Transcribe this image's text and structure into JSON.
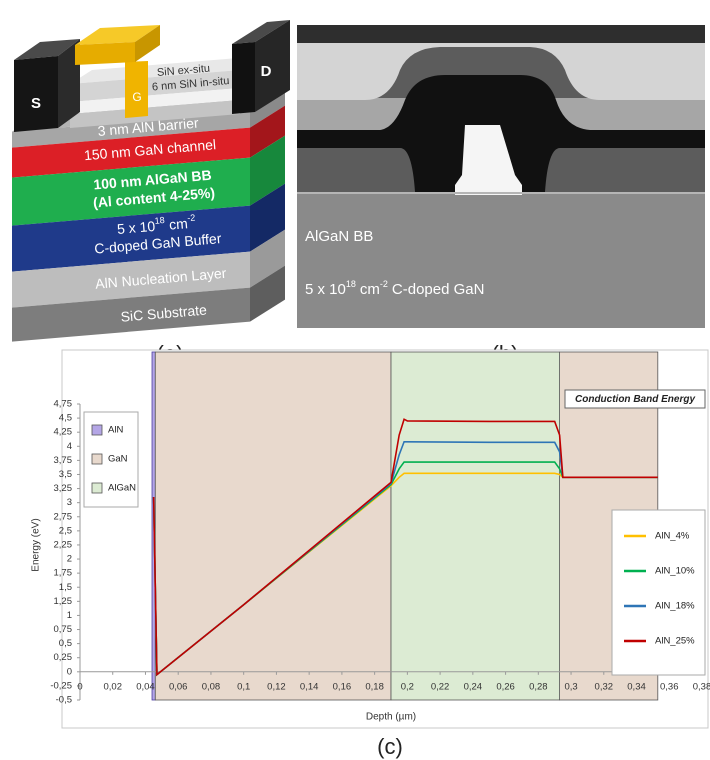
{
  "panel_a": {
    "label": "(a)",
    "source": "S",
    "drain": "D",
    "gate": "G",
    "sin_ex_situ": "SiN ex-situ",
    "sin_in_situ": "6 nm SiN in-situ",
    "barrier": "3 nm AlN barrier",
    "channel": "150 nm GaN channel",
    "back_barrier": [
      "100 nm AlGaN BB",
      "(Al content 4-25%)"
    ],
    "buffer": {
      "base": "5 x 10",
      "exp": "18",
      "unit": "cm",
      "unit_exp": "-2",
      "line2": "C-doped GaN Buffer"
    },
    "nucleation": "AlN Nucleation Layer",
    "substrate": "SiC Substrate"
  },
  "panel_b": {
    "label": "(b)",
    "layer1": "AlGaN BB",
    "layer2": {
      "base": "5 x 10",
      "exp": "18",
      "unit": "cm",
      "unit_exp": "-2",
      "rest": "C-doped GaN"
    }
  },
  "panel_c_label": "(c)",
  "chart_data": {
    "type": "line",
    "annotation": "Conduction Band Energy",
    "x_label": "Depth (µm)",
    "y_label": "Energy (eV)",
    "x": [
      0.045,
      0.046,
      0.047,
      0.1,
      0.19,
      0.195,
      0.198,
      0.2,
      0.25,
      0.29,
      0.293,
      0.295,
      0.353
    ],
    "series": [
      {
        "name": "AlN_4%",
        "color": "#ffc000",
        "values": [
          3.1,
          1.5,
          -0.05,
          1.19,
          3.3,
          3.45,
          3.52,
          3.52,
          3.52,
          3.52,
          3.5,
          3.45,
          3.45
        ]
      },
      {
        "name": "AlN_10%",
        "color": "#00b050",
        "values": [
          3.1,
          1.5,
          -0.05,
          1.19,
          3.32,
          3.6,
          3.72,
          3.72,
          3.72,
          3.72,
          3.6,
          3.45,
          3.45
        ]
      },
      {
        "name": "AlN_18%",
        "color": "#2e75b6",
        "values": [
          3.1,
          1.5,
          -0.05,
          1.19,
          3.34,
          3.85,
          4.08,
          4.08,
          4.07,
          4.07,
          3.9,
          3.45,
          3.45
        ]
      },
      {
        "name": "AlN_25%",
        "color": "#c00000",
        "values": [
          3.1,
          1.5,
          -0.05,
          1.19,
          3.36,
          4.2,
          4.48,
          4.45,
          4.44,
          4.44,
          4.2,
          3.45,
          3.45
        ]
      }
    ],
    "regions": [
      {
        "name": "AlN",
        "color": "#b4a6e6",
        "spans": [
          [
            0.044,
            0.046
          ]
        ]
      },
      {
        "name": "GaN",
        "color": "#e8d9cd",
        "spans": [
          [
            0.046,
            0.19
          ],
          [
            0.293,
            0.353
          ]
        ]
      },
      {
        "name": "AlGaN",
        "color": "#dcebd3",
        "spans": [
          [
            0.19,
            0.293
          ]
        ]
      }
    ],
    "legend": "right",
    "region_legend": "upper left",
    "xlim": [
      0,
      0.38
    ],
    "xticks": [
      0,
      {
        "value": 0.02,
        "label": "0,02"
      },
      {
        "value": 0.04,
        "label": "0,04"
      },
      {
        "value": 0.06,
        "label": "0,06"
      },
      {
        "value": 0.08,
        "label": "0,08"
      },
      {
        "value": 0.1,
        "label": "0,1"
      },
      {
        "value": 0.12,
        "label": "0,12"
      },
      {
        "value": 0.14,
        "label": "0,14"
      },
      {
        "value": 0.16,
        "label": "0,16"
      },
      {
        "value": 0.18,
        "label": "0,18"
      },
      {
        "value": 0.2,
        "label": "0,2"
      },
      {
        "value": 0.22,
        "label": "0,22"
      },
      {
        "value": 0.24,
        "label": "0,24"
      },
      {
        "value": 0.26,
        "label": "0,26"
      },
      {
        "value": 0.28,
        "label": "0,28"
      },
      {
        "value": 0.3,
        "label": "0,3"
      },
      {
        "value": 0.32,
        "label": "0,32"
      },
      {
        "value": 0.34,
        "label": "0,34"
      },
      {
        "value": 0.36,
        "label": "0,36"
      },
      {
        "value": 0.38,
        "label": "0,38"
      }
    ],
    "ylim": [
      -0.5,
      4.75
    ],
    "yticks": [
      {
        "value": 4.75,
        "label": "4,75"
      },
      {
        "value": 4.5,
        "label": "4,5"
      },
      {
        "value": 4.25,
        "label": "4,25"
      },
      4,
      {
        "value": 3.75,
        "label": "3,75"
      },
      {
        "value": 3.5,
        "label": "3,5"
      },
      {
        "value": 3.25,
        "label": "3,25"
      },
      3,
      {
        "value": 2.75,
        "label": "2,75"
      },
      {
        "value": 2.5,
        "label": "2,5"
      },
      {
        "value": 2.25,
        "label": "2,25"
      },
      2,
      {
        "value": 1.75,
        "label": "1,75"
      },
      {
        "value": 1.5,
        "label": "1,5"
      },
      {
        "value": 1.25,
        "label": "1,25"
      },
      1,
      {
        "value": 0.75,
        "label": "0,75"
      },
      {
        "value": 0.5,
        "label": "0,5"
      },
      {
        "value": 0.25,
        "label": "0,25"
      },
      0,
      {
        "value": -0.25,
        "label": "-0,25"
      },
      {
        "value": -0.5,
        "label": "-0,5"
      }
    ]
  }
}
